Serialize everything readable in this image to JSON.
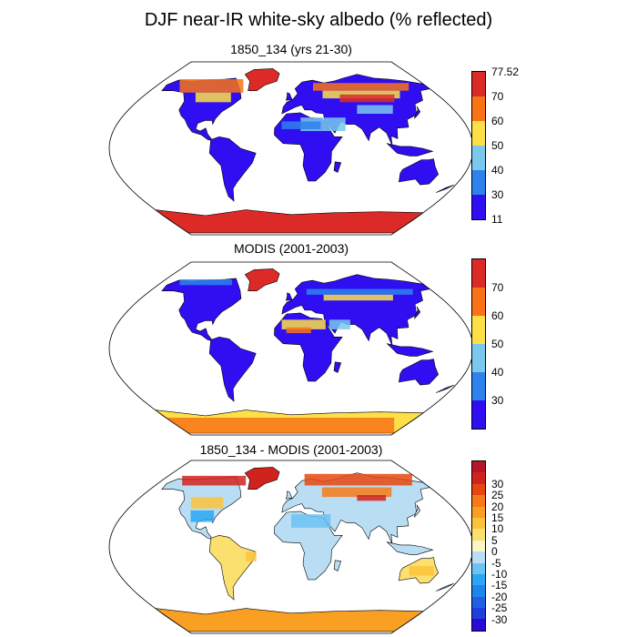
{
  "title": "DJF near-IR white-sky albedo (% reflected)",
  "panels": [
    {
      "name": "model",
      "title": "1850_134 (yrs 21-30)",
      "colors": [
        "#2f0ff2",
        "#2d82ec",
        "#7ac8ee",
        "#fde047",
        "#f97316",
        "#dc2b26"
      ],
      "labels": [
        "11",
        "30",
        "40",
        "50",
        "60",
        "70",
        "77.52"
      ]
    },
    {
      "name": "modis",
      "title": "MODIS (2001-2003)",
      "colors": [
        "#2f0ff2",
        "#2d82ec",
        "#7ac8ee",
        "#fde047",
        "#f97316",
        "#dc2b26"
      ],
      "labels": [
        "30",
        "40",
        "50",
        "60",
        "70"
      ]
    },
    {
      "name": "difference",
      "title": "1850_134 - MODIS (2001-2003)",
      "colors": [
        "#2a0ad6",
        "#1f3fdc",
        "#2160e4",
        "#1d86ee",
        "#2aa7f2",
        "#6cc2f2",
        "#b9def4",
        "#fbf7c4",
        "#fbe070",
        "#fbc33b",
        "#f99f22",
        "#f77a16",
        "#e8460f",
        "#d1231d",
        "#b7152a"
      ],
      "labels": [
        "-30",
        "-25",
        "-20",
        "-15",
        "-10",
        "-5",
        "0",
        "5",
        "10",
        "15",
        "20",
        "25",
        "30"
      ]
    }
  ]
}
